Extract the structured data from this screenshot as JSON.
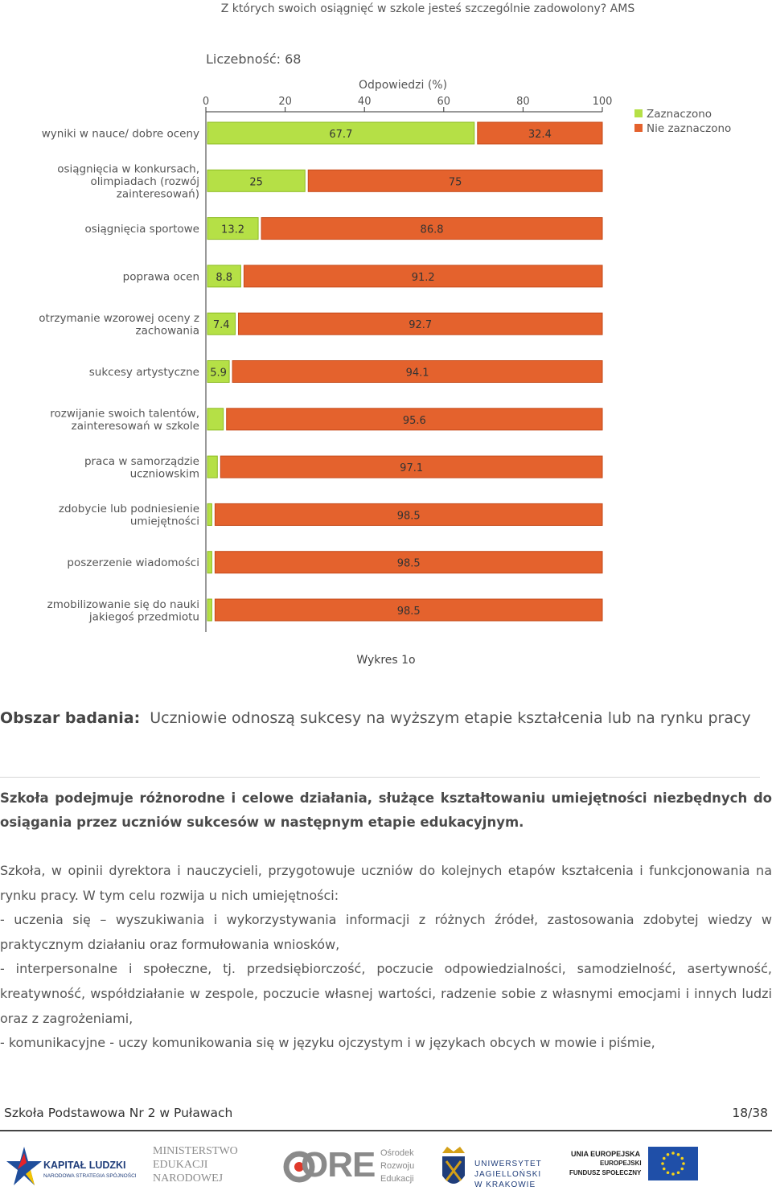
{
  "chart_data": {
    "type": "bar",
    "orientation": "horizontal",
    "stacked": true,
    "title": "Z których swoich osiągnięć w szkole jesteś szczególnie zadowolony? AMS",
    "subtitle": "Liczebność: 68",
    "xlabel": "Odpowiedzi (%)",
    "xlim": [
      0,
      100
    ],
    "xticks": [
      "0",
      "20",
      "40",
      "60",
      "80",
      "100"
    ],
    "categories": [
      [
        "wyniki w nauce/ dobre oceny"
      ],
      [
        "osiągnięcia w konkursach,",
        "olimpiadach (rozwój",
        "zainteresowań)"
      ],
      [
        "osiągnięcia sportowe"
      ],
      [
        "poprawa ocen"
      ],
      [
        "otrzymanie wzorowej oceny z",
        "zachowania"
      ],
      [
        "sukcesy artystyczne"
      ],
      [
        "rozwijanie swoich talentów,",
        "zainteresowań w szkole"
      ],
      [
        "praca w samorządzie",
        "uczniowskim"
      ],
      [
        "zdobycie lub podniesienie",
        "umiejętności"
      ],
      [
        "poszerzenie wiadomości"
      ],
      [
        "zmobilizowanie się do nauki",
        "jakiegoś przedmiotu"
      ]
    ],
    "series": [
      {
        "name": "Zaznaczono",
        "color": "#b5e046",
        "border": "#8dbb22",
        "values": [
          67.7,
          25,
          13.2,
          8.8,
          7.4,
          5.9,
          4.4,
          2.9,
          1.5,
          1.5,
          1.5
        ],
        "labels": [
          "67.7",
          "25",
          "13.2",
          "8.8",
          "7.4",
          "5.9",
          "",
          "",
          "",
          "",
          ""
        ]
      },
      {
        "name": "Nie zaznaczono",
        "color": "#e4622d",
        "border": "#c54a19",
        "values": [
          32.4,
          75,
          86.8,
          91.2,
          92.7,
          94.1,
          95.6,
          97.1,
          98.5,
          98.5,
          98.5
        ],
        "labels": [
          "32.4",
          "75",
          "86.8",
          "91.2",
          "92.7",
          "94.1",
          "95.6",
          "97.1",
          "98.5",
          "98.5",
          "98.5"
        ]
      }
    ],
    "legend": "top-right",
    "grid": false
  },
  "caption": "Wykres 1o",
  "obszar": {
    "label": "Obszar badania:",
    "text": "Uczniowie odnoszą sukcesy na wyższym etapie kształcenia lub na rynku pracy"
  },
  "bold_paragraph": "Szkoła podejmuje różnorodne i celowe działania, służące kształtowaniu umiejętności niezbędnych do osiągania przez uczniów sukcesów w następnym etapie edukacyjnym.",
  "body_paragraphs": [
    "Szkoła, w opinii dyrektora i nauczycieli, przygotowuje uczniów do kolejnych etapów kształcenia i funkcjonowania na rynku pracy. W tym celu rozwija u nich umiejętności:",
    "- uczenia się – wyszukiwania i wykorzystywania informacji z różnych źródeł, zastosowania zdobytej wiedzy w praktycznym działaniu oraz formułowania wniosków,",
    "- interpersonalne i społeczne, tj. przedsiębiorczość, poczucie odpowiedzialności, samodzielność, asertywność, kreatywność, współdziałanie w zespole, poczucie własnej wartości, radzenie sobie z własnymi emocjami i innych ludzi oraz z zagrożeniami,",
    "- komunikacyjne - uczy komunikowania się w języku ojczystym i w językach obcych w mowie i piśmie,"
  ],
  "footer": {
    "school": "Szkoła Podstawowa Nr 2 w Puławach",
    "page": "18/38"
  },
  "logos": {
    "kapital": {
      "title": "KAPITAŁ LUDZKI",
      "sub": "NARODOWA STRATEGIA SPÓJNOŚCI"
    },
    "men": {
      "l1": "MINISTERSTWO",
      "l2": "EDUKACJI",
      "l3": "NARODOWEJ"
    },
    "ore": {
      "mark": "ORE",
      "l1": "Ośrodek",
      "l2": "Rozwoju",
      "l3": "Edukacji"
    },
    "uj": {
      "l1": "UNIWERSYTET",
      "l2": "JAGIELLOŃSKI",
      "l3": "W KRAKOWIE"
    },
    "ue": {
      "l1": "UNIA EUROPEJSKA",
      "l2": "EUROPEJSKI",
      "l3": "FUNDUSZ SPOŁECZNY"
    }
  }
}
